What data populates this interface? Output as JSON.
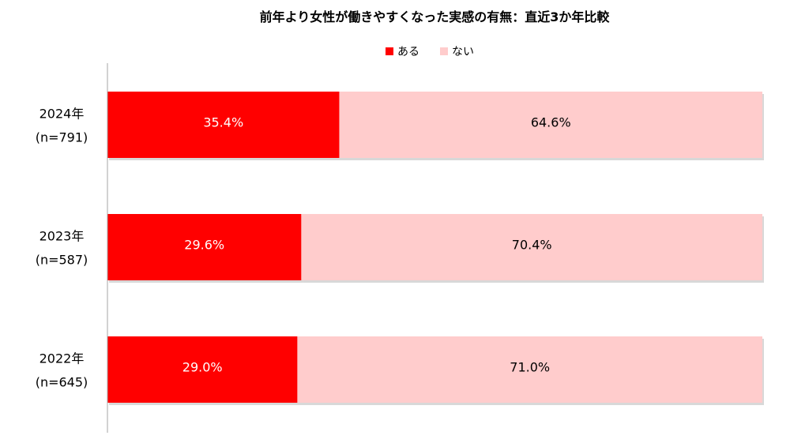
{
  "chart_data": {
    "type": "bar",
    "orientation": "horizontal",
    "stacked": "100%",
    "title": "前年より女性が働きやすくなった実感の有無：直近3か年比較",
    "categories": [
      {
        "year": "2024年",
        "n": "(n=791)"
      },
      {
        "year": "2023年",
        "n": "(n=587)"
      },
      {
        "year": "2022年",
        "n": "(n=645)"
      }
    ],
    "series": [
      {
        "name": "ある",
        "color": "#ff0000",
        "label_color": "#ffffff",
        "values": [
          35.4,
          29.6,
          29.0
        ],
        "labels": [
          "35.4%",
          "29.6%",
          "29.0%"
        ]
      },
      {
        "name": "ない",
        "color": "#ffcccc",
        "label_color": "#000000",
        "values": [
          64.6,
          70.4,
          71.0
        ],
        "labels": [
          "64.6%",
          "70.4%",
          "71.0%"
        ]
      }
    ],
    "xlim": [
      0,
      100
    ],
    "legend_position": "top",
    "grid": false
  }
}
